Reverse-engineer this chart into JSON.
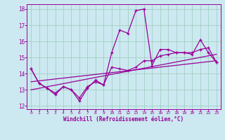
{
  "xlabel": "Windchill (Refroidissement éolien,°C)",
  "xlim": [
    -0.5,
    23.5
  ],
  "ylim": [
    11.8,
    18.3
  ],
  "yticks": [
    12,
    13,
    14,
    15,
    16,
    17,
    18
  ],
  "xticks": [
    0,
    1,
    2,
    3,
    4,
    5,
    6,
    7,
    8,
    9,
    10,
    11,
    12,
    13,
    14,
    15,
    16,
    17,
    18,
    19,
    20,
    21,
    22,
    23
  ],
  "bg_color": "#cce8f0",
  "grid_color": "#99ccbb",
  "line_color": "#990099",
  "line1_x": [
    0,
    1,
    2,
    3,
    4,
    5,
    6,
    7,
    8,
    9,
    10,
    11,
    12,
    13,
    14,
    15,
    16,
    17,
    18,
    19,
    20,
    21,
    22,
    23
  ],
  "line1_y": [
    14.3,
    13.4,
    13.1,
    12.7,
    13.2,
    13.0,
    12.3,
    13.1,
    13.6,
    13.3,
    15.3,
    16.7,
    16.5,
    17.9,
    18.0,
    14.5,
    15.5,
    15.5,
    15.3,
    15.3,
    15.2,
    16.1,
    15.3,
    14.7
  ],
  "line2_x": [
    0,
    1,
    2,
    3,
    4,
    5,
    6,
    7,
    8,
    9,
    10,
    11,
    12,
    13,
    14,
    15,
    16,
    17,
    18,
    19,
    20,
    21,
    22,
    23
  ],
  "line2_y": [
    14.3,
    13.4,
    13.1,
    12.8,
    13.2,
    13.0,
    12.5,
    13.2,
    13.5,
    13.3,
    14.4,
    14.3,
    14.2,
    14.4,
    14.8,
    14.8,
    15.1,
    15.2,
    15.3,
    15.3,
    15.3,
    15.5,
    15.6,
    14.7
  ],
  "line3_x": [
    0,
    23
  ],
  "line3_y": [
    13.0,
    15.2
  ],
  "line4_x": [
    0,
    23
  ],
  "line4_y": [
    13.5,
    14.8
  ]
}
